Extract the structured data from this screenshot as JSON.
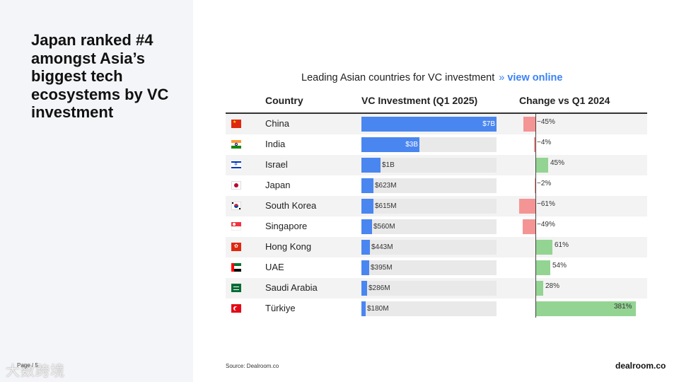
{
  "headline": "Japan ranked #4 amongst Asia’s biggest tech ecosystems by VC investment",
  "page_label": "Page / 5",
  "watermark": "大数跨境",
  "chart_header": {
    "title": "Leading Asian countries for VC investment",
    "separator": "»",
    "link": "view online"
  },
  "columns": {
    "country": "Country",
    "investment": "VC Investment (Q1 2025)",
    "change": "Change vs Q1 2024"
  },
  "chart_data": {
    "type": "table",
    "rows": [
      {
        "country": "China",
        "flag": "china-flag",
        "investment_usd_m": 7000,
        "investment_label": "$7B",
        "change_pct": -45,
        "change_label": "−45%"
      },
      {
        "country": "India",
        "flag": "india-flag",
        "investment_usd_m": 3000,
        "investment_label": "$3B",
        "change_pct": -4,
        "change_label": "−4%"
      },
      {
        "country": "Israel",
        "flag": "israel-flag",
        "investment_usd_m": 1000,
        "investment_label": "$1B",
        "change_pct": 45,
        "change_label": "45%"
      },
      {
        "country": "Japan",
        "flag": "japan-flag",
        "investment_usd_m": 623,
        "investment_label": "$623M",
        "change_pct": -2,
        "change_label": "−2%"
      },
      {
        "country": "South Korea",
        "flag": "south-korea-flag",
        "investment_usd_m": 615,
        "investment_label": "$615M",
        "change_pct": -61,
        "change_label": "−61%"
      },
      {
        "country": "Singapore",
        "flag": "singapore-flag",
        "investment_usd_m": 560,
        "investment_label": "$560M",
        "change_pct": -49,
        "change_label": "−49%"
      },
      {
        "country": "Hong Kong",
        "flag": "hong-kong-flag",
        "investment_usd_m": 443,
        "investment_label": "$443M",
        "change_pct": 61,
        "change_label": "61%"
      },
      {
        "country": "UAE",
        "flag": "uae-flag",
        "investment_usd_m": 395,
        "investment_label": "$395M",
        "change_pct": 54,
        "change_label": "54%"
      },
      {
        "country": "Saudi Arabia",
        "flag": "saudi-arabia-flag",
        "investment_usd_m": 286,
        "investment_label": "$286M",
        "change_pct": 28,
        "change_label": "28%"
      },
      {
        "country": "Türkiye",
        "flag": "turkiye-flag",
        "investment_usd_m": 180,
        "investment_label": "$180M",
        "change_pct": 381,
        "change_label": "381%"
      }
    ]
  },
  "colors": {
    "investment_bar": "#4a86f0",
    "negative_change": "#f59494",
    "positive_change": "#93d493",
    "link": "#3b82f6"
  },
  "source": "Source:  Dealroom.co",
  "brand": "dealroom.co"
}
